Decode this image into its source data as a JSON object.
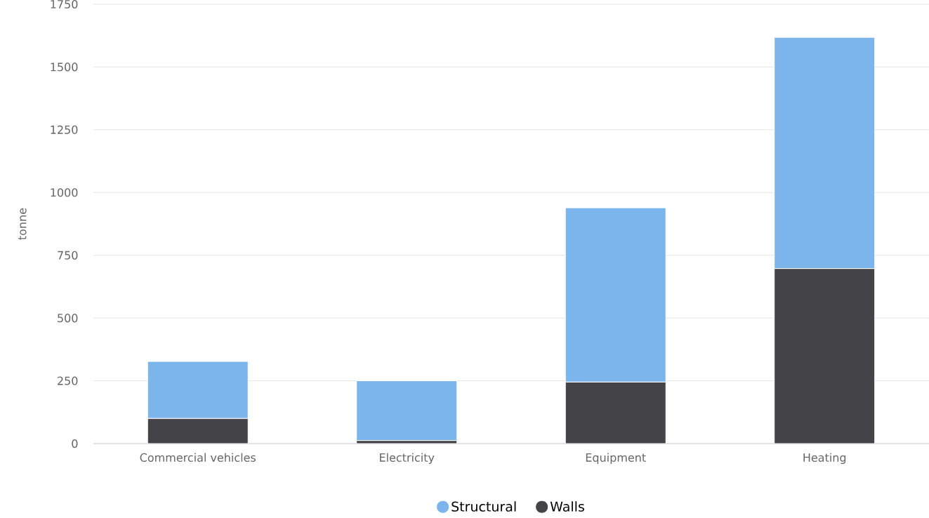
{
  "chart_data": {
    "type": "bar",
    "stacked": true,
    "ylabel": "tonne",
    "categories": [
      "Commercial vehicles",
      "Electricity",
      "Equipment",
      "Heating"
    ],
    "series": [
      {
        "name": "Walls",
        "color": "#434348",
        "values": [
          100,
          12,
          245,
          697
        ]
      },
      {
        "name": "Structural",
        "color": "#7cb5ec",
        "values": [
          227,
          238,
          694,
          921
        ]
      }
    ],
    "ylim": [
      0,
      1750
    ],
    "yticks": [
      0,
      250,
      500,
      750,
      1000,
      1250,
      1500,
      1750
    ],
    "grid": "y",
    "legend": "bottom"
  }
}
